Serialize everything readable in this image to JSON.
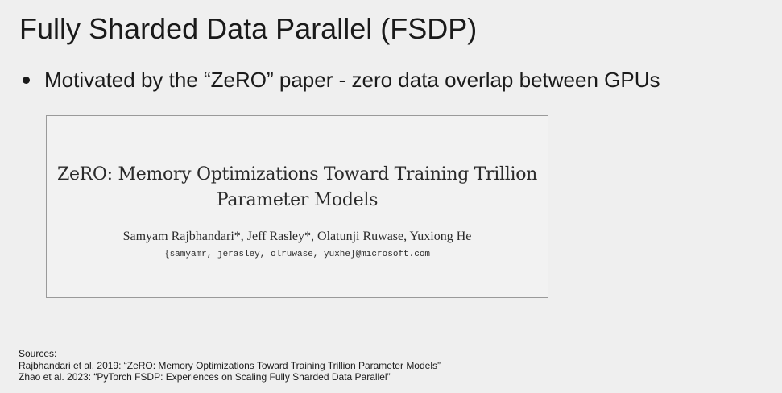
{
  "slide": {
    "title": "Fully Sharded Data Parallel (FSDP)",
    "bullets": [
      "Motivated by the “ZeRO” paper - zero data overlap between GPUs"
    ]
  },
  "paper": {
    "title_line1": "ZeRO: Memory Optimizations Toward Training Trillion",
    "title_line2": "Parameter Models",
    "authors": "Samyam Rajbhandari*, Jeff Rasley*, Olatunji Ruwase, Yuxiong He",
    "emails": "{samyamr, jerasley, olruwase, yuxhe}@microsoft.com"
  },
  "sources": {
    "heading": "Sources:",
    "items": [
      "Rajbhandari et al. 2019: “ZeRO: Memory Optimizations Toward Training Trillion Parameter Models”",
      "Zhao et al. 2023: “PyTorch FSDP: Experiences on Scaling Fully Sharded Data Parallel”"
    ]
  }
}
